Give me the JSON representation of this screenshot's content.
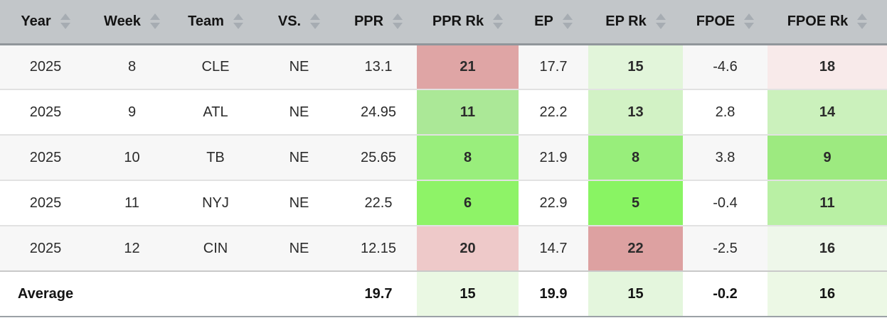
{
  "table": {
    "columns": [
      {
        "key": "year",
        "label": "Year"
      },
      {
        "key": "week",
        "label": "Week"
      },
      {
        "key": "team",
        "label": "Team"
      },
      {
        "key": "vs",
        "label": "VS."
      },
      {
        "key": "ppr",
        "label": "PPR"
      },
      {
        "key": "ppr_rk",
        "label": "PPR Rk"
      },
      {
        "key": "ep",
        "label": "EP"
      },
      {
        "key": "ep_rk",
        "label": "EP Rk"
      },
      {
        "key": "fpoe",
        "label": "FPOE"
      },
      {
        "key": "fpoe_rk",
        "label": "FPOE Rk"
      }
    ],
    "rows": [
      {
        "cells": [
          "2025",
          "8",
          "CLE",
          "NE",
          "13.1",
          "21",
          "17.7",
          "15",
          "-4.6",
          "18"
        ],
        "rank_bg": {
          "ppr_rk": "#dfa5a5",
          "ep_rk": "#e2f5da",
          "fpoe_rk": "#f8eaea"
        }
      },
      {
        "cells": [
          "2025",
          "9",
          "ATL",
          "NE",
          "24.95",
          "11",
          "22.2",
          "13",
          "2.8",
          "14"
        ],
        "rank_bg": {
          "ppr_rk": "#abe897",
          "ep_rk": "#d2f2c5",
          "fpoe_rk": "#cbf1bc"
        }
      },
      {
        "cells": [
          "2025",
          "10",
          "TB",
          "NE",
          "25.65",
          "8",
          "21.9",
          "8",
          "3.8",
          "9"
        ],
        "rank_bg": {
          "ppr_rk": "#99ee7c",
          "ep_rk": "#98ee7b",
          "fpoe_rk": "#9dea80"
        }
      },
      {
        "cells": [
          "2025",
          "11",
          "NYJ",
          "NE",
          "22.5",
          "6",
          "22.9",
          "5",
          "-0.4",
          "11"
        ],
        "rank_bg": {
          "ppr_rk": "#8ef367",
          "ep_rk": "#89f463",
          "fpoe_rk": "#b9f0a4"
        }
      },
      {
        "cells": [
          "2025",
          "12",
          "CIN",
          "NE",
          "12.15",
          "20",
          "14.7",
          "22",
          "-2.5",
          "16"
        ],
        "rank_bg": {
          "ppr_rk": "#eec9c9",
          "ep_rk": "#dda1a1",
          "fpoe_rk": "#eef7ea"
        }
      }
    ],
    "average_row": {
      "cells": [
        "Average",
        "",
        "",
        "",
        "19.7",
        "15",
        "19.9",
        "15",
        "-0.2",
        "16"
      ],
      "rank_bg": {
        "ppr_rk": "#eaf8e3",
        "ep_rk": "#e4f6dd",
        "fpoe_rk": "#ecf8e5"
      }
    }
  },
  "ui_colors": {
    "header_bg": "#c2c6c9",
    "header_border": "#90969b",
    "sort_arrow": "#a6acb2",
    "row_alt_bg": "#f7f7f7"
  }
}
